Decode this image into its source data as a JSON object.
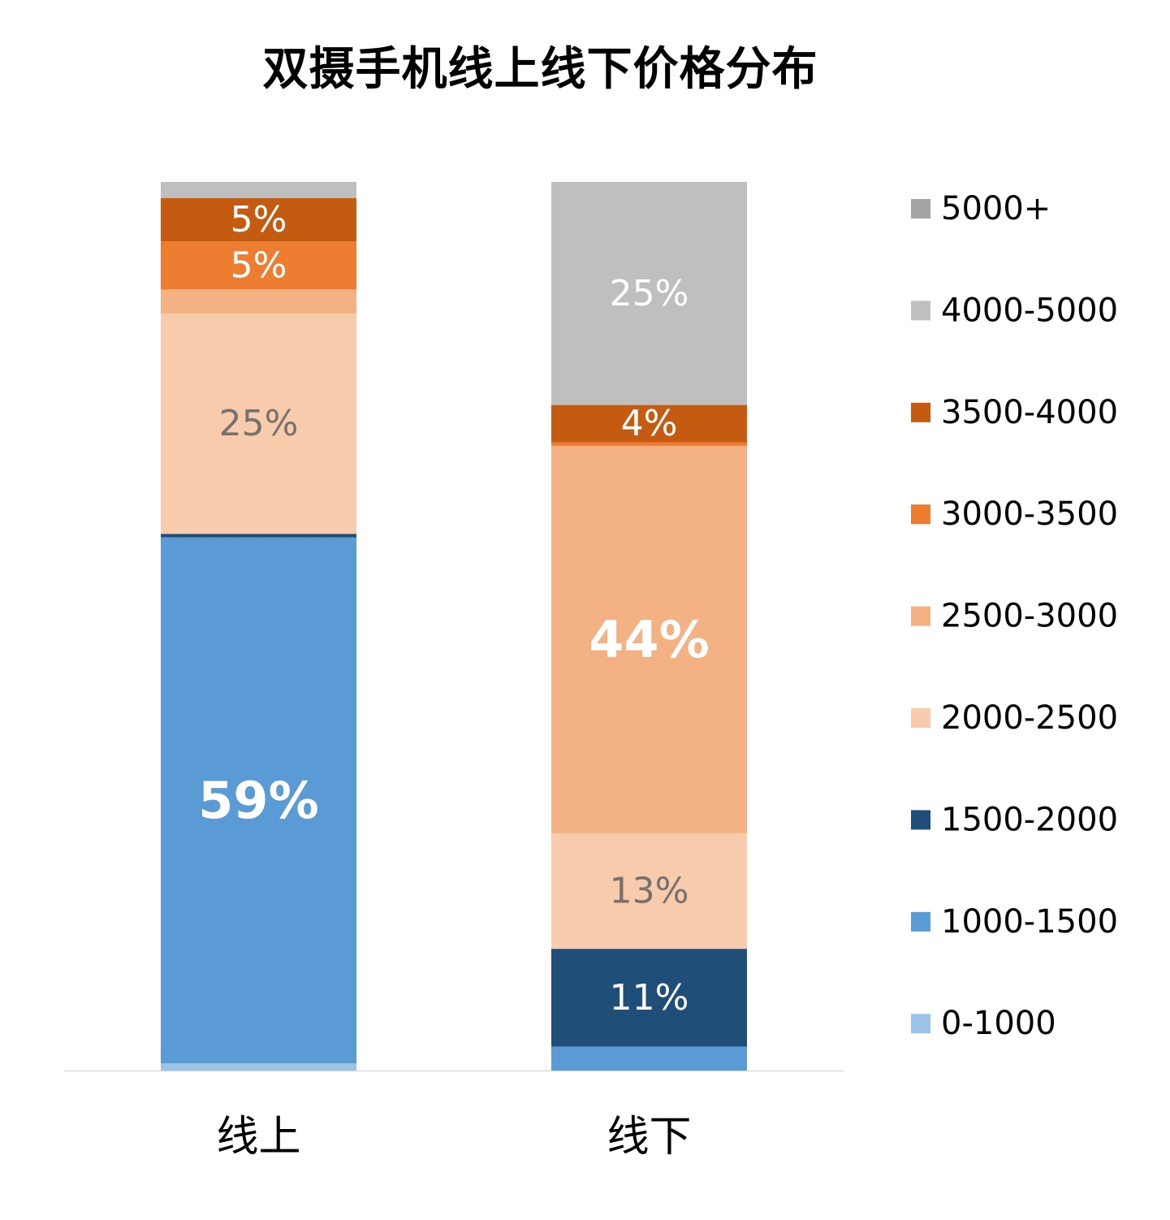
{
  "chart_data": {
    "type": "bar",
    "stacked": true,
    "normalized": true,
    "title": "双摄手机线上线下价格分布",
    "xlabel": "",
    "ylabel": "",
    "ylim": [
      0,
      100
    ],
    "grid": false,
    "legend_position": "right",
    "categories": [
      "线上",
      "线下"
    ],
    "series": [
      {
        "name": "0-1000",
        "color": "#9DC3E6",
        "values": [
          0.8,
          0
        ],
        "labels": [
          "",
          ""
        ]
      },
      {
        "name": "1000-1500",
        "color": "#5B9BD5",
        "values": [
          59.2,
          2.7
        ],
        "labels": [
          "59%",
          ""
        ]
      },
      {
        "name": "1500-2000",
        "color": "#1F4E79",
        "values": [
          0.4,
          11
        ],
        "labels": [
          "",
          "11%"
        ]
      },
      {
        "name": "2000-2500",
        "color": "#F8CBAD",
        "values": [
          24.8,
          13
        ],
        "labels": [
          "25%",
          "13%"
        ]
      },
      {
        "name": "2500-3000",
        "color": "#F4B183",
        "values": [
          2.7,
          43.6
        ],
        "labels": [
          "",
          "44%"
        ]
      },
      {
        "name": "3000-3500",
        "color": "#ED7D31",
        "values": [
          5.4,
          0.4
        ],
        "labels": [
          "5%",
          ""
        ]
      },
      {
        "name": "3500-4000",
        "color": "#C55A11",
        "values": [
          4.9,
          4.2
        ],
        "labels": [
          "5%",
          "4%"
        ]
      },
      {
        "name": "4000-5000",
        "color": "#BFBFBF",
        "values": [
          1.8,
          25.1
        ],
        "labels": [
          "",
          "25%"
        ]
      },
      {
        "name": "5000+",
        "color": "#A5A5A5",
        "values": [
          0,
          0
        ],
        "labels": [
          "",
          ""
        ]
      }
    ]
  }
}
